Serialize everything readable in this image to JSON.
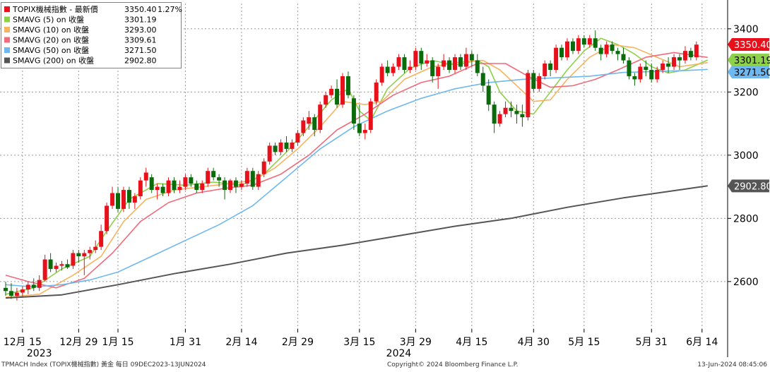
{
  "legend": [
    {
      "label": "TOPIX機械指數 - 最新價",
      "value": "3350.40",
      "change": "1.27%",
      "color": "#e8101a"
    },
    {
      "label": "SMAVG (5)  on 收盤",
      "value": "3301.19",
      "color": "#8fd04a"
    },
    {
      "label": "SMAVG (10)  on 收盤",
      "value": "3293.00",
      "color": "#f7b360"
    },
    {
      "label": "SMAVG (20)  on 收盤",
      "value": "3309.61",
      "color": "#f06b7b"
    },
    {
      "label": "SMAVG (50)  on 收盤",
      "value": "3271.50",
      "color": "#6fb8ef"
    },
    {
      "label": "SMAVG (200)  on 收盤",
      "value": "2902.80",
      "color": "#555555"
    }
  ],
  "price_tags": [
    {
      "value": "3350.40",
      "at": 3350.4,
      "bg": "#e8101a",
      "fg": "#ffffff"
    },
    {
      "value": "3301.19",
      "at": 3301.19,
      "bg": "#8fd04a",
      "fg": "#000000"
    },
    {
      "value": "3271.50",
      "at": 3271.5,
      "bg": "#6fb8ef",
      "fg": "#000000"
    },
    {
      "value": "2902.80",
      "at": 2902.8,
      "bg": "#555555",
      "fg": "#ffffff"
    }
  ],
  "footer": {
    "left": "TPMACH Index (TOPIX機械指數) 黃金  每日 09DEC2023-13JUN2024",
    "center": "Copyright© 2024 Bloomberg Finance L.P.",
    "right": "13-Jun-2024 08:45:06"
  },
  "chart_data": {
    "type": "candlestick",
    "ylim": [
      2450,
      3480
    ],
    "y_ticks": [
      2600,
      2800,
      3000,
      3200,
      3400
    ],
    "x_ticks": [
      {
        "label": "12月 15",
        "bar": 3
      },
      {
        "label": "12月 29",
        "bar": 13
      },
      {
        "label": "1月 15",
        "bar": 20
      },
      {
        "label": "1月 31",
        "bar": 32
      },
      {
        "label": "2月 14",
        "bar": 42
      },
      {
        "label": "2月 29",
        "bar": 52
      },
      {
        "label": "3月 15",
        "bar": 63
      },
      {
        "label": "3月 29",
        "bar": 73
      },
      {
        "label": "4月 15",
        "bar": 83
      },
      {
        "label": "4月 30",
        "bar": 94
      },
      {
        "label": "5月 15",
        "bar": 103
      },
      {
        "label": "5月 31",
        "bar": 115
      },
      {
        "label": "6月 14",
        "bar": 124
      }
    ],
    "year_labels": [
      {
        "label": "2023",
        "bar": 6
      },
      {
        "label": "2024",
        "bar": 70
      }
    ],
    "ohlc": [
      [
        2580,
        2600,
        2555,
        2570
      ],
      [
        2570,
        2595,
        2545,
        2555
      ],
      [
        2555,
        2580,
        2540,
        2565
      ],
      [
        2565,
        2585,
        2550,
        2575
      ],
      [
        2575,
        2600,
        2560,
        2590
      ],
      [
        2590,
        2610,
        2570,
        2580
      ],
      [
        2580,
        2620,
        2570,
        2605
      ],
      [
        2605,
        2685,
        2600,
        2670
      ],
      [
        2670,
        2690,
        2630,
        2640
      ],
      [
        2640,
        2660,
        2630,
        2650
      ],
      [
        2650,
        2665,
        2635,
        2655
      ],
      [
        2655,
        2670,
        2640,
        2645
      ],
      [
        2650,
        2700,
        2640,
        2690
      ],
      [
        2690,
        2700,
        2660,
        2680
      ],
      [
        2680,
        2700,
        2620,
        2690
      ],
      [
        2690,
        2710,
        2670,
        2700
      ],
      [
        2700,
        2730,
        2690,
        2710
      ],
      [
        2710,
        2780,
        2700,
        2760
      ],
      [
        2760,
        2850,
        2750,
        2840
      ],
      [
        2840,
        2900,
        2830,
        2880
      ],
      [
        2880,
        2900,
        2820,
        2830
      ],
      [
        2830,
        2900,
        2820,
        2890
      ],
      [
        2890,
        2900,
        2830,
        2850
      ],
      [
        2850,
        2880,
        2830,
        2870
      ],
      [
        2870,
        2930,
        2860,
        2920
      ],
      [
        2920,
        2960,
        2900,
        2945
      ],
      [
        2930,
        2940,
        2880,
        2890
      ],
      [
        2890,
        2910,
        2860,
        2900
      ],
      [
        2900,
        2910,
        2870,
        2880
      ],
      [
        2880,
        2930,
        2870,
        2920
      ],
      [
        2920,
        2930,
        2880,
        2890
      ],
      [
        2890,
        2920,
        2880,
        2900
      ],
      [
        2900,
        2940,
        2890,
        2930
      ],
      [
        2930,
        2940,
        2900,
        2910
      ],
      [
        2910,
        2920,
        2880,
        2890
      ],
      [
        2890,
        2920,
        2880,
        2910
      ],
      [
        2910,
        2960,
        2900,
        2950
      ],
      [
        2950,
        2960,
        2920,
        2930
      ],
      [
        2930,
        2940,
        2900,
        2920
      ],
      [
        2920,
        2930,
        2860,
        2890
      ],
      [
        2890,
        2925,
        2880,
        2920
      ],
      [
        2920,
        2930,
        2880,
        2900
      ],
      [
        2900,
        2920,
        2890,
        2910
      ],
      [
        2910,
        2960,
        2900,
        2950
      ],
      [
        2950,
        2960,
        2890,
        2900
      ],
      [
        2900,
        2950,
        2890,
        2940
      ],
      [
        2940,
        2990,
        2930,
        2980
      ],
      [
        2980,
        3040,
        2970,
        3030
      ],
      [
        3030,
        3040,
        3000,
        3010
      ],
      [
        3010,
        3050,
        3000,
        3040
      ],
      [
        3040,
        3060,
        3010,
        3020
      ],
      [
        3020,
        3050,
        3010,
        3040
      ],
      [
        3040,
        3080,
        3030,
        3070
      ],
      [
        3070,
        3120,
        3060,
        3110
      ],
      [
        3100,
        3140,
        3080,
        3120
      ],
      [
        3120,
        3130,
        3060,
        3080
      ],
      [
        3080,
        3170,
        3070,
        3160
      ],
      [
        3160,
        3200,
        3150,
        3190
      ],
      [
        3190,
        3220,
        3180,
        3210
      ],
      [
        3210,
        3240,
        3150,
        3160
      ],
      [
        3160,
        3260,
        3150,
        3250
      ],
      [
        3250,
        3265,
        3180,
        3190
      ],
      [
        3180,
        3190,
        3080,
        3100
      ],
      [
        3100,
        3160,
        3060,
        3070
      ],
      [
        3070,
        3100,
        3050,
        3080
      ],
      [
        3080,
        3180,
        3070,
        3170
      ],
      [
        3170,
        3240,
        3160,
        3230
      ],
      [
        3230,
        3290,
        3220,
        3280
      ],
      [
        3280,
        3300,
        3250,
        3260
      ],
      [
        3260,
        3290,
        3250,
        3280
      ],
      [
        3280,
        3320,
        3270,
        3310
      ],
      [
        3310,
        3320,
        3260,
        3270
      ],
      [
        3270,
        3300,
        3260,
        3280
      ],
      [
        3280,
        3340,
        3270,
        3330
      ],
      [
        3330,
        3340,
        3270,
        3290
      ],
      [
        3290,
        3320,
        3280,
        3300
      ],
      [
        3300,
        3310,
        3230,
        3250
      ],
      [
        3250,
        3290,
        3210,
        3280
      ],
      [
        3280,
        3320,
        3270,
        3300
      ],
      [
        3300,
        3310,
        3260,
        3270
      ],
      [
        3270,
        3320,
        3260,
        3310
      ],
      [
        3310,
        3320,
        3270,
        3280
      ],
      [
        3280,
        3340,
        3270,
        3320
      ],
      [
        3320,
        3330,
        3280,
        3300
      ],
      [
        3300,
        3320,
        3250,
        3260
      ],
      [
        3260,
        3280,
        3200,
        3220
      ],
      [
        3220,
        3240,
        3140,
        3160
      ],
      [
        3160,
        3170,
        3070,
        3100
      ],
      [
        3100,
        3140,
        3090,
        3130
      ],
      [
        3130,
        3170,
        3120,
        3150
      ],
      [
        3150,
        3170,
        3120,
        3140
      ],
      [
        3140,
        3160,
        3100,
        3130
      ],
      [
        3130,
        3160,
        3090,
        3120
      ],
      [
        3120,
        3270,
        3110,
        3260
      ],
      [
        3260,
        3270,
        3200,
        3210
      ],
      [
        3210,
        3260,
        3200,
        3250
      ],
      [
        3250,
        3300,
        3240,
        3290
      ],
      [
        3290,
        3300,
        3250,
        3270
      ],
      [
        3270,
        3350,
        3260,
        3340
      ],
      [
        3340,
        3350,
        3300,
        3310
      ],
      [
        3310,
        3370,
        3300,
        3360
      ],
      [
        3360,
        3370,
        3320,
        3330
      ],
      [
        3330,
        3380,
        3320,
        3370
      ],
      [
        3370,
        3380,
        3340,
        3350
      ],
      [
        3350,
        3380,
        3340,
        3370
      ],
      [
        3370,
        3395,
        3330,
        3340
      ],
      [
        3340,
        3350,
        3300,
        3320
      ],
      [
        3320,
        3360,
        3310,
        3350
      ],
      [
        3350,
        3360,
        3320,
        3330
      ],
      [
        3330,
        3340,
        3300,
        3320
      ],
      [
        3320,
        3340,
        3290,
        3300
      ],
      [
        3300,
        3310,
        3240,
        3250
      ],
      [
        3250,
        3260,
        3220,
        3240
      ],
      [
        3240,
        3290,
        3230,
        3280
      ],
      [
        3280,
        3300,
        3250,
        3270
      ],
      [
        3270,
        3290,
        3230,
        3240
      ],
      [
        3240,
        3280,
        3230,
        3270
      ],
      [
        3270,
        3300,
        3260,
        3290
      ],
      [
        3290,
        3310,
        3260,
        3280
      ],
      [
        3280,
        3320,
        3270,
        3310
      ],
      [
        3310,
        3320,
        3270,
        3300
      ],
      [
        3300,
        3345,
        3290,
        3330
      ],
      [
        3330,
        3340,
        3300,
        3310
      ],
      [
        3310,
        3360,
        3300,
        3350
      ]
    ],
    "series": [
      {
        "name": "SMAVG (5)  on 收盤",
        "color": "#8fd04a",
        "points": [
          [
            0,
            2560
          ],
          [
            5,
            2580
          ],
          [
            10,
            2640
          ],
          [
            15,
            2680
          ],
          [
            18,
            2760
          ],
          [
            22,
            2860
          ],
          [
            27,
            2910
          ],
          [
            32,
            2905
          ],
          [
            37,
            2915
          ],
          [
            42,
            2905
          ],
          [
            46,
            2940
          ],
          [
            50,
            3010
          ],
          [
            53,
            3070
          ],
          [
            58,
            3175
          ],
          [
            61,
            3210
          ],
          [
            63,
            3140
          ],
          [
            65,
            3110
          ],
          [
            68,
            3210
          ],
          [
            72,
            3275
          ],
          [
            76,
            3300
          ],
          [
            80,
            3285
          ],
          [
            84,
            3300
          ],
          [
            86,
            3280
          ],
          [
            88,
            3200
          ],
          [
            91,
            3140
          ],
          [
            94,
            3130
          ],
          [
            97,
            3200
          ],
          [
            100,
            3270
          ],
          [
            103,
            3330
          ],
          [
            106,
            3370
          ],
          [
            109,
            3350
          ],
          [
            112,
            3320
          ],
          [
            115,
            3280
          ],
          [
            118,
            3260
          ],
          [
            121,
            3270
          ],
          [
            125,
            3301.19
          ]
        ]
      },
      {
        "name": "SMAVG (10)  on 收盤",
        "color": "#f7b360",
        "points": [
          [
            0,
            2550
          ],
          [
            6,
            2560
          ],
          [
            12,
            2620
          ],
          [
            17,
            2680
          ],
          [
            21,
            2790
          ],
          [
            25,
            2860
          ],
          [
            30,
            2890
          ],
          [
            35,
            2900
          ],
          [
            40,
            2910
          ],
          [
            44,
            2920
          ],
          [
            48,
            2960
          ],
          [
            52,
            3020
          ],
          [
            56,
            3090
          ],
          [
            60,
            3170
          ],
          [
            64,
            3160
          ],
          [
            67,
            3170
          ],
          [
            71,
            3240
          ],
          [
            76,
            3280
          ],
          [
            81,
            3295
          ],
          [
            85,
            3300
          ],
          [
            88,
            3270
          ],
          [
            91,
            3220
          ],
          [
            94,
            3170
          ],
          [
            97,
            3175
          ],
          [
            100,
            3240
          ],
          [
            104,
            3310
          ],
          [
            108,
            3350
          ],
          [
            112,
            3340
          ],
          [
            116,
            3310
          ],
          [
            120,
            3280
          ],
          [
            125,
            3293
          ]
        ]
      },
      {
        "name": "SMAVG (20)  on 收盤",
        "color": "#f06b7b",
        "points": [
          [
            0,
            2620
          ],
          [
            4,
            2600
          ],
          [
            9,
            2580
          ],
          [
            14,
            2610
          ],
          [
            19,
            2690
          ],
          [
            24,
            2790
          ],
          [
            29,
            2850
          ],
          [
            34,
            2880
          ],
          [
            39,
            2895
          ],
          [
            44,
            2905
          ],
          [
            49,
            2940
          ],
          [
            54,
            3000
          ],
          [
            59,
            3080
          ],
          [
            64,
            3130
          ],
          [
            69,
            3190
          ],
          [
            74,
            3230
          ],
          [
            79,
            3250
          ],
          [
            84,
            3290
          ],
          [
            89,
            3290
          ],
          [
            93,
            3250
          ],
          [
            97,
            3215
          ],
          [
            101,
            3220
          ],
          [
            105,
            3240
          ],
          [
            109,
            3270
          ],
          [
            114,
            3310
          ],
          [
            119,
            3325
          ],
          [
            125,
            3309.61
          ]
        ]
      },
      {
        "name": "SMAVG (50)  on 收盤",
        "color": "#6fb8ef",
        "points": [
          [
            0,
            2590
          ],
          [
            5,
            2583
          ],
          [
            10,
            2590
          ],
          [
            15,
            2605
          ],
          [
            20,
            2630
          ],
          [
            26,
            2680
          ],
          [
            32,
            2730
          ],
          [
            38,
            2780
          ],
          [
            44,
            2840
          ],
          [
            50,
            2930
          ],
          [
            56,
            3020
          ],
          [
            62,
            3090
          ],
          [
            68,
            3140
          ],
          [
            74,
            3180
          ],
          [
            80,
            3210
          ],
          [
            86,
            3230
          ],
          [
            92,
            3240
          ],
          [
            98,
            3245
          ],
          [
            104,
            3250
          ],
          [
            110,
            3262
          ],
          [
            116,
            3265
          ],
          [
            121,
            3268
          ],
          [
            125,
            3271.5
          ]
        ]
      },
      {
        "name": "SMAVG (200)  on 收盤",
        "color": "#555555",
        "points": [
          [
            0,
            2548
          ],
          [
            10,
            2558
          ],
          [
            20,
            2590
          ],
          [
            30,
            2625
          ],
          [
            40,
            2655
          ],
          [
            50,
            2690
          ],
          [
            60,
            2715
          ],
          [
            70,
            2745
          ],
          [
            80,
            2775
          ],
          [
            90,
            2800
          ],
          [
            100,
            2835
          ],
          [
            110,
            2865
          ],
          [
            118,
            2885
          ],
          [
            125,
            2902.8
          ]
        ]
      }
    ]
  }
}
